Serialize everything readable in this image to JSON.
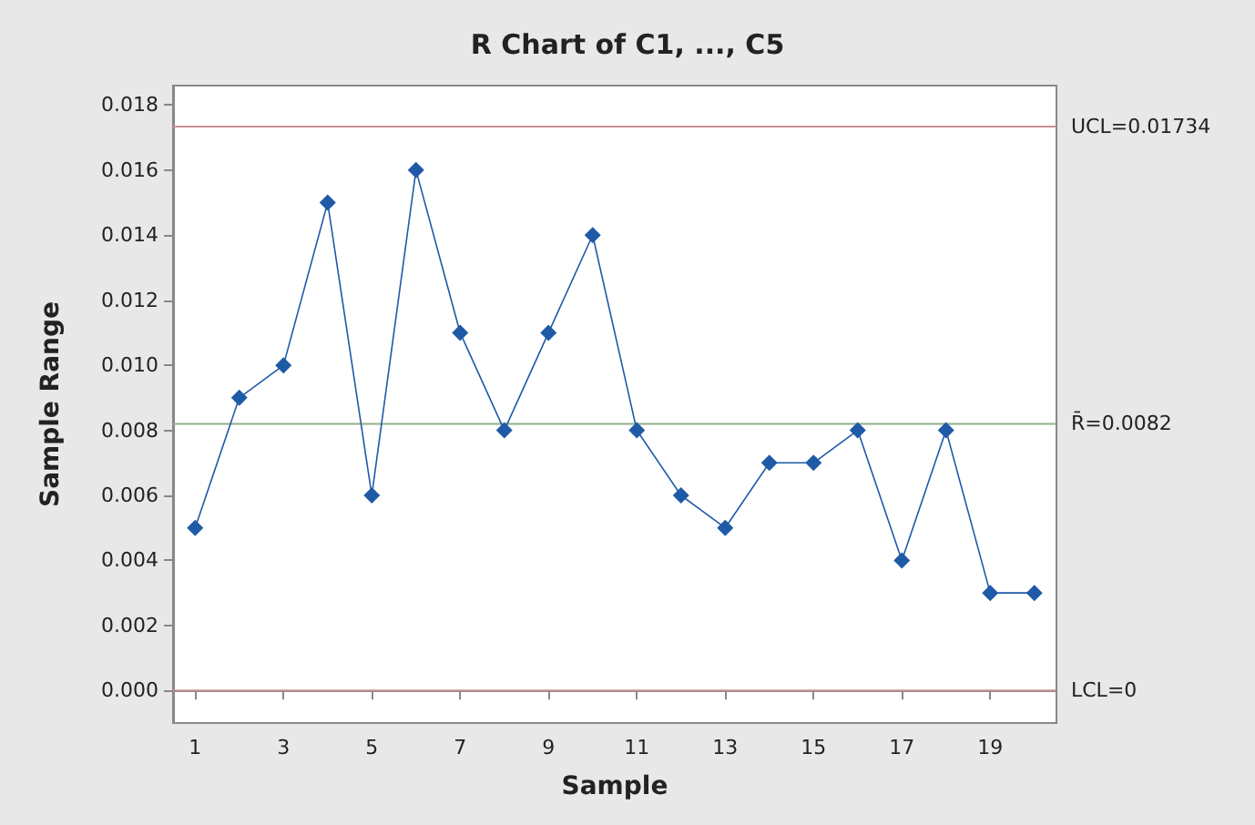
{
  "chart_data": {
    "type": "line",
    "title": "R Chart of C1, ..., C5",
    "xlabel": "Sample",
    "ylabel": "Sample Range",
    "x": [
      1,
      2,
      3,
      4,
      5,
      6,
      7,
      8,
      9,
      10,
      11,
      12,
      13,
      14,
      15,
      16,
      17,
      18,
      19,
      20
    ],
    "series": [
      {
        "color": "#1f5aa6",
        "values": [
          0.005,
          0.009,
          0.01,
          0.015,
          0.006,
          0.016,
          0.011,
          0.008,
          0.011,
          0.014,
          0.008,
          0.006,
          0.005,
          0.007,
          0.007,
          0.008,
          0.004,
          0.008,
          0.003,
          0.003
        ]
      }
    ],
    "xlim": [
      0.5,
      20.5
    ],
    "xticks": [
      1,
      3,
      5,
      7,
      9,
      11,
      13,
      15,
      17,
      19
    ],
    "ylim": [
      -0.001,
      0.0186
    ],
    "yticks": [
      {
        "value": 0,
        "label": "0.000"
      },
      {
        "value": 0.002,
        "label": "0.002"
      },
      {
        "value": 0.004,
        "label": "0.004"
      },
      {
        "value": 0.006,
        "label": "0.006"
      },
      {
        "value": 0.008,
        "label": "0.008"
      },
      {
        "value": 0.01,
        "label": "0.010"
      },
      {
        "value": 0.012,
        "label": "0.012"
      },
      {
        "value": 0.014,
        "label": "0.014"
      },
      {
        "value": 0.016,
        "label": "0.016"
      },
      {
        "value": 0.018,
        "label": "0.018"
      }
    ],
    "ref_lines": [
      {
        "axis": "y",
        "value": 0.01734,
        "label": "UCL=0.01734",
        "color": "#c89090"
      },
      {
        "axis": "y",
        "value": 0.0082,
        "label": "R̄=0.0082",
        "color": "#8fb08a"
      },
      {
        "axis": "y",
        "value": 0,
        "label": "LCL=0",
        "color": "#c89090"
      }
    ],
    "marker": "diamond"
  }
}
